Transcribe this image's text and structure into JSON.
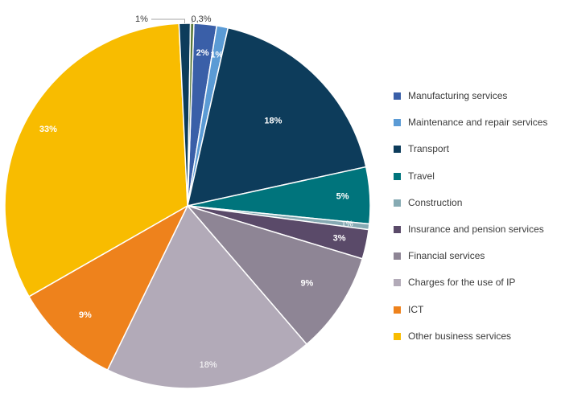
{
  "chart_data": {
    "type": "pie",
    "title": "",
    "series": [
      {
        "name": "Manufacturing services",
        "value": 2,
        "label": "2%",
        "color": "#3a5fa8"
      },
      {
        "name": "Maintenance and repair services",
        "value": 1,
        "label": "1%",
        "color": "#5b9bd5"
      },
      {
        "name": "Transport",
        "value": 18,
        "label": "18%",
        "color": "#0d3c5b"
      },
      {
        "name": "Travel",
        "value": 5,
        "label": "5%",
        "color": "#00747c"
      },
      {
        "name": "Construction",
        "value": 0.5,
        "label": "1%",
        "color": "#86aab3"
      },
      {
        "name": "Insurance and pension services",
        "value": 2.6,
        "label": "3%",
        "color": "#5a4a69"
      },
      {
        "name": "Financial services",
        "value": 9,
        "label": "9%",
        "color": "#8e8595"
      },
      {
        "name": "Charges for the use of IP",
        "value": 18.5,
        "label": "18%",
        "color": "#b2aab8"
      },
      {
        "name": "ICT",
        "value": 9.5,
        "label": "9%",
        "color": "#ee821c"
      },
      {
        "name": "Other business services",
        "value": 32.5,
        "label": "33%",
        "color": "#f8bc00"
      },
      {
        "name": "",
        "value": 1,
        "label": "1%",
        "color": "#0d3c5b"
      },
      {
        "name": "",
        "value": 0.3,
        "label": "0,3%",
        "color": "#5a7a3a"
      }
    ]
  }
}
